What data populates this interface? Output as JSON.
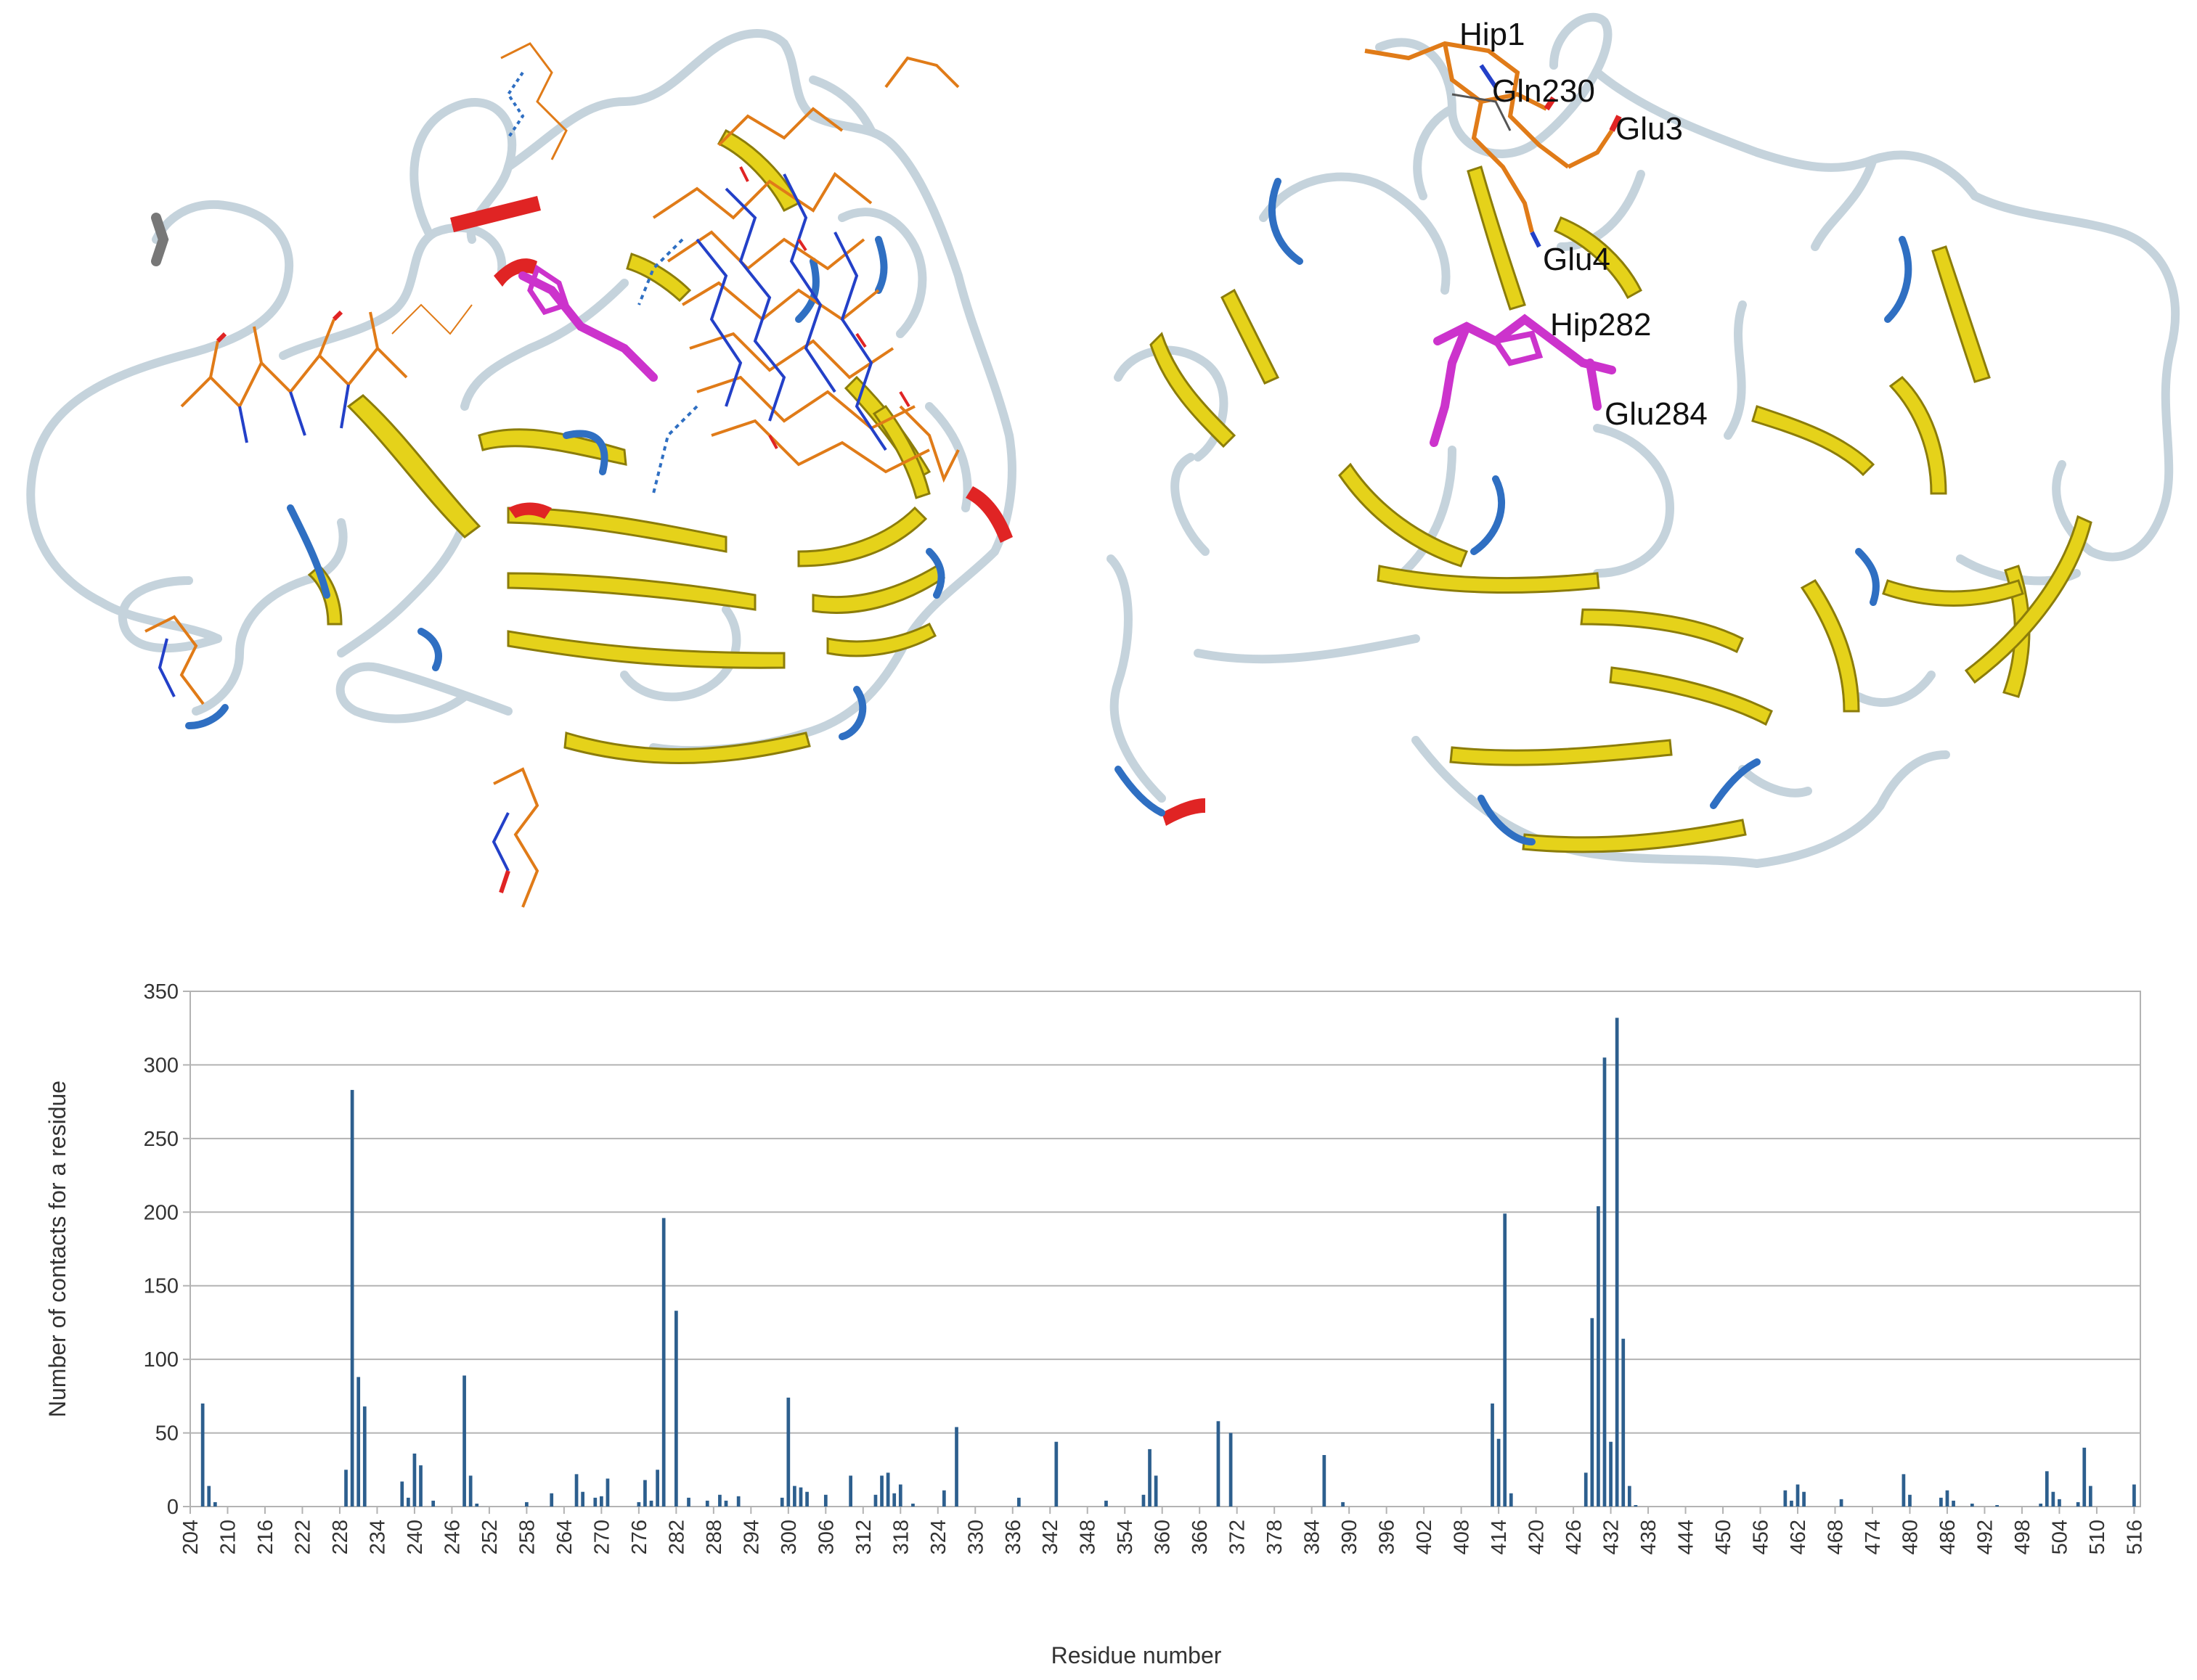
{
  "structure_panels": {
    "left": {
      "icon": "protein-ribbon-with-docked-ligands"
    },
    "right": {
      "icon": "protein-ribbon-with-binding-residues",
      "residue_labels": [
        "Hip1",
        "Gln230",
        "Glu3",
        "Glu4",
        "Hip282",
        "Glu284"
      ]
    }
  },
  "colors": {
    "bar": "#2d5f8e",
    "strand": "#e5d21a",
    "helix": "#e02424",
    "turn": "#2f6fc2",
    "coil": "#c5d3dc",
    "ligand": "#e07b18",
    "key_residue": "#cc33cc"
  },
  "chart_data": {
    "type": "bar",
    "xlabel": "Residue number",
    "ylabel": "Number of contacts for a residue",
    "xlim": [
      204,
      517
    ],
    "ylim": [
      0,
      350
    ],
    "y_ticks": [
      0,
      50,
      100,
      150,
      200,
      250,
      300,
      350
    ],
    "x_ticks": [
      204,
      210,
      216,
      222,
      228,
      234,
      240,
      246,
      252,
      258,
      264,
      270,
      276,
      282,
      288,
      294,
      300,
      306,
      312,
      318,
      324,
      330,
      336,
      342,
      348,
      354,
      360,
      366,
      372,
      378,
      384,
      390,
      396,
      402,
      408,
      414,
      420,
      426,
      432,
      438,
      444,
      450,
      456,
      462,
      468,
      474,
      480,
      486,
      492,
      498,
      504,
      510,
      516
    ],
    "grid": true,
    "x": [
      206,
      207,
      208,
      229,
      230,
      231,
      232,
      238,
      239,
      240,
      241,
      243,
      248,
      249,
      250,
      258,
      262,
      266,
      267,
      269,
      270,
      271,
      276,
      277,
      278,
      279,
      280,
      282,
      284,
      287,
      289,
      290,
      292,
      299,
      300,
      301,
      302,
      303,
      306,
      310,
      314,
      315,
      316,
      317,
      318,
      320,
      325,
      327,
      337,
      343,
      351,
      357,
      358,
      359,
      369,
      371,
      386,
      389,
      413,
      414,
      415,
      416,
      428,
      429,
      430,
      431,
      432,
      433,
      434,
      435,
      436,
      460,
      461,
      462,
      463,
      469,
      479,
      480,
      485,
      486,
      487,
      490,
      494,
      501,
      502,
      503,
      504,
      507,
      508,
      509,
      516
    ],
    "values": [
      70,
      14,
      3,
      25,
      283,
      88,
      68,
      17,
      6,
      36,
      28,
      4,
      89,
      21,
      2,
      3,
      9,
      22,
      10,
      6,
      7,
      19,
      3,
      18,
      4,
      25,
      196,
      133,
      6,
      4,
      8,
      4,
      7,
      6,
      74,
      14,
      13,
      10,
      8,
      21,
      8,
      21,
      23,
      9,
      15,
      2,
      11,
      54,
      6,
      44,
      4,
      8,
      39,
      21,
      58,
      50,
      35,
      3,
      70,
      46,
      199,
      9,
      23,
      128,
      204,
      305,
      44,
      332,
      114,
      14,
      1,
      11,
      4,
      15,
      10,
      5,
      22,
      8,
      6,
      11,
      4,
      2,
      1,
      2,
      24,
      10,
      5,
      3,
      40,
      14,
      15
    ]
  }
}
